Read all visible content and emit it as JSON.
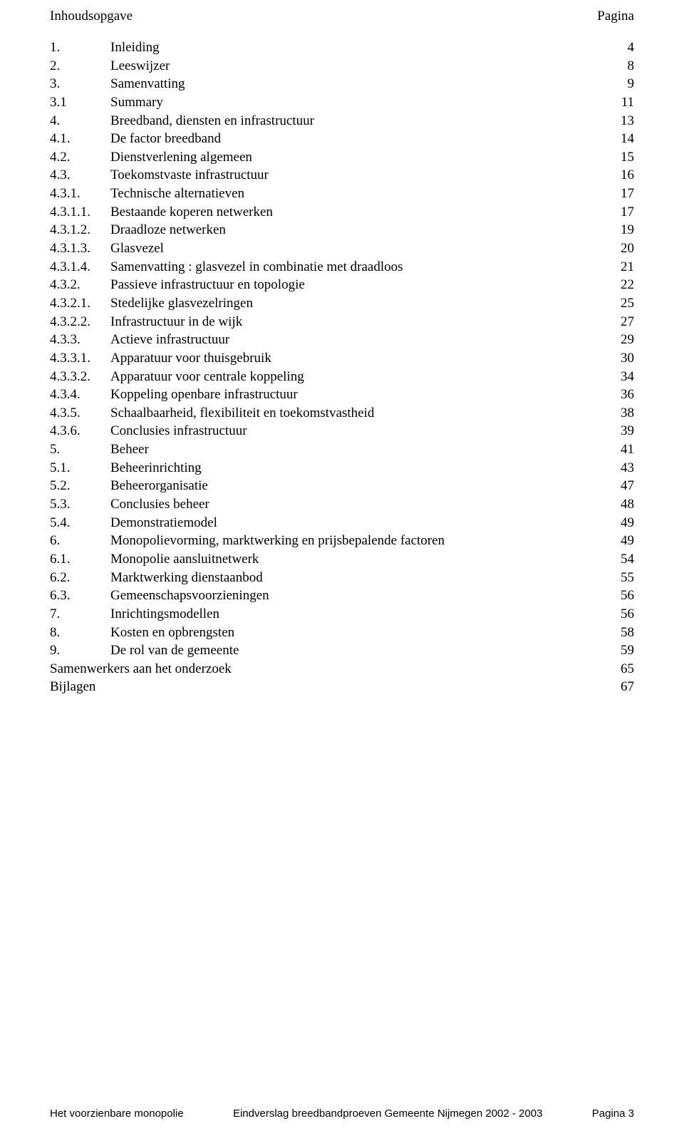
{
  "header": {
    "left": "Inhoudsopgave",
    "right": "Pagina"
  },
  "toc": [
    {
      "num": "1.",
      "label": "Inleiding",
      "page": "4"
    },
    {
      "num": "2.",
      "label": "Leeswijzer",
      "page": "8"
    },
    {
      "num": "3.",
      "label": "Samenvatting",
      "page": "9"
    },
    {
      "num": "3.1",
      "label": "Summary",
      "page": "11"
    },
    {
      "num": "4.",
      "label": "Breedband, diensten en infrastructuur",
      "page": "13"
    },
    {
      "num": "4.1.",
      "label": "De factor breedband",
      "page": "14"
    },
    {
      "num": "4.2.",
      "label": "Dienstverlening algemeen",
      "page": "15"
    },
    {
      "num": "4.3.",
      "label": "Toekomstvaste infrastructuur",
      "page": "16"
    },
    {
      "num": "4.3.1.",
      "label": "Technische alternatieven",
      "page": "17"
    },
    {
      "num": "4.3.1.1.",
      "label": "Bestaande koperen netwerken",
      "page": "17"
    },
    {
      "num": "4.3.1.2.",
      "label": "Draadloze netwerken",
      "page": "19"
    },
    {
      "num": "4.3.1.3.",
      "label": "Glasvezel",
      "page": "20"
    },
    {
      "num": "4.3.1.4.",
      "label": "Samenvatting : glasvezel in combinatie met draadloos",
      "page": "21"
    },
    {
      "num": "4.3.2.",
      "label": "Passieve infrastructuur en topologie",
      "page": "22"
    },
    {
      "num": "4.3.2.1.",
      "label": "Stedelijke glasvezelringen",
      "page": "25"
    },
    {
      "num": "4.3.2.2.",
      "label": "Infrastructuur in de wijk",
      "page": "27"
    },
    {
      "num": "4.3.3.",
      "label": "Actieve infrastructuur",
      "page": "29"
    },
    {
      "num": "4.3.3.1.",
      "label": "Apparatuur voor thuisgebruik",
      "page": "30"
    },
    {
      "num": "4.3.3.2.",
      "label": "Apparatuur voor centrale koppeling",
      "page": "34"
    },
    {
      "num": "4.3.4.",
      "label": "Koppeling openbare infrastructuur",
      "page": "36"
    },
    {
      "num": "4.3.5.",
      "label": "Schaalbaarheid, flexibiliteit en toekomstvastheid",
      "page": "38"
    },
    {
      "num": "4.3.6.",
      "label": "Conclusies infrastructuur",
      "page": "39"
    },
    {
      "num": "5.",
      "label": "Beheer",
      "page": "41"
    },
    {
      "num": "5.1.",
      "label": "Beheerinrichting",
      "page": "43"
    },
    {
      "num": "5.2.",
      "label": "Beheerorganisatie",
      "page": "47"
    },
    {
      "num": "5.3.",
      "label": "Conclusies beheer",
      "page": "48"
    },
    {
      "num": "5.4.",
      "label": "Demonstratiemodel",
      "page": "49"
    },
    {
      "num": "6.",
      "label": "Monopolievorming, marktwerking en prijsbepalende factoren",
      "page": "49"
    },
    {
      "num": "6.1.",
      "label": "Monopolie aansluitnetwerk",
      "page": "54"
    },
    {
      "num": "6.2.",
      "label": "Marktwerking dienstaanbod",
      "page": "55"
    },
    {
      "num": "6.3.",
      "label": "Gemeenschapsvoorzieningen",
      "page": "56"
    },
    {
      "num": "7.",
      "label": "Inrichtingsmodellen",
      "page": "56"
    },
    {
      "num": "8.",
      "label": "Kosten en opbrengsten",
      "page": "58"
    },
    {
      "num": "9.",
      "label": "De rol van de gemeente",
      "page": "59"
    },
    {
      "num": "",
      "label": "Samenwerkers aan het onderzoek",
      "page": "65"
    },
    {
      "num": "",
      "label": "Bijlagen",
      "page": "67"
    }
  ],
  "footer": {
    "left": "Het voorzienbare monopolie",
    "center": "Eindverslag breedbandproeven Gemeente Nijmegen 2002 - 2003",
    "right": "Pagina 3"
  }
}
